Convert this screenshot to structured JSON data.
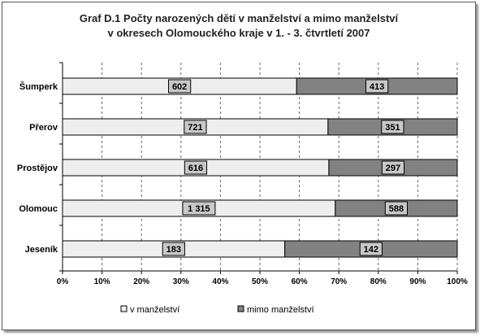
{
  "chart_data": {
    "type": "bar",
    "orientation": "horizontal",
    "stacked": "percent",
    "title": "Graf D.1 Počty narozených dětí v manželství a mimo manželství v okresech Olomouckého kraje v 1. - 3. čtvrtletí 2007",
    "title_lines": [
      "Graf D.1 Počty narozených dětí v manželství a mimo manželství",
      "v okresech Olomouckého kraje v 1. - 3. čtvrtletí 2007"
    ],
    "categories": [
      "Šumperk",
      "Přerov",
      "Prostějov",
      "Olomouc",
      "Jeseník"
    ],
    "series": [
      {
        "name": "v manželství",
        "values": [
          602,
          721,
          616,
          1315,
          183
        ],
        "labels": [
          "602",
          "721",
          "616",
          "1 315",
          "183"
        ],
        "color": "#eeeeee"
      },
      {
        "name": "mimo manželství",
        "values": [
          413,
          351,
          297,
          588,
          142
        ],
        "labels": [
          "413",
          "351",
          "297",
          "588",
          "142"
        ],
        "color": "#828282"
      }
    ],
    "x_ticks": [
      "0%",
      "10%",
      "20%",
      "30%",
      "40%",
      "50%",
      "60%",
      "70%",
      "80%",
      "90%",
      "100%"
    ],
    "xlim": [
      0,
      100
    ],
    "xlabel": "",
    "ylabel": "",
    "grid": "vertical dashed",
    "legend_position": "bottom",
    "label_box_color": "#c8c8c8"
  }
}
